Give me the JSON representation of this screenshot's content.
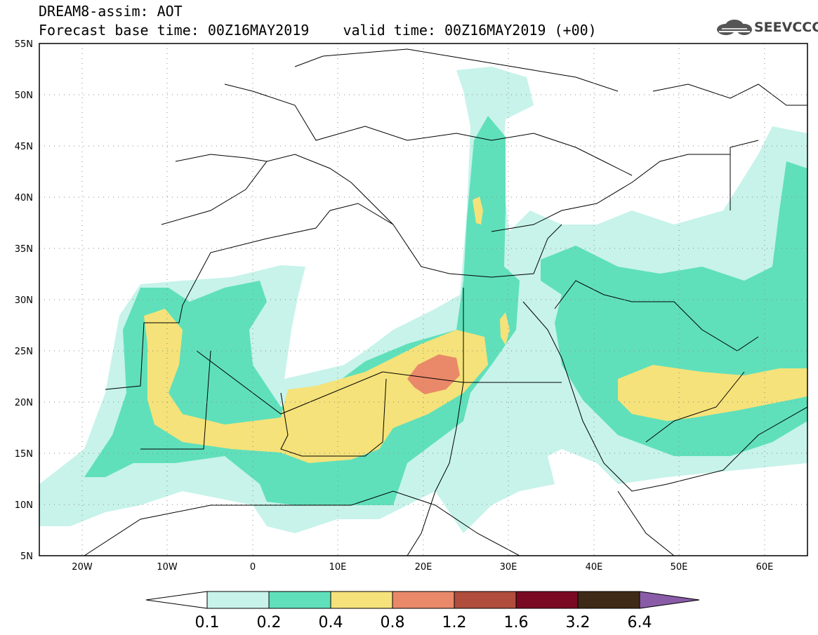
{
  "header": {
    "line1": "DREAM8-assim: AOT",
    "line2": "Forecast base time: 00Z16MAY2019    valid time: 00Z16MAY2019 (+00)"
  },
  "logo": {
    "text": "SEEVCCC",
    "icon": "cloud-icon"
  },
  "map": {
    "lat_range": [
      5,
      55
    ],
    "lon_range": [
      -25,
      65
    ],
    "lat_ticks": [
      "55N",
      "50N",
      "45N",
      "40N",
      "35N",
      "30N",
      "25N",
      "20N",
      "15N",
      "10N",
      "5N"
    ],
    "lon_ticks": [
      "20W",
      "10W",
      "0",
      "10E",
      "20E",
      "30E",
      "40E",
      "50E",
      "60E"
    ],
    "grid": "dotted"
  },
  "colorbar": {
    "labels": [
      "0.1",
      "0.2",
      "0.4",
      "0.8",
      "1.2",
      "1.6",
      "3.2",
      "6.4"
    ],
    "colors": [
      "#c7f3ea",
      "#5fe0bb",
      "#f5e27a",
      "#e9896a",
      "#b04d3d",
      "#7a0a24",
      "#3e2a17",
      "#8a5ca8"
    ]
  }
}
